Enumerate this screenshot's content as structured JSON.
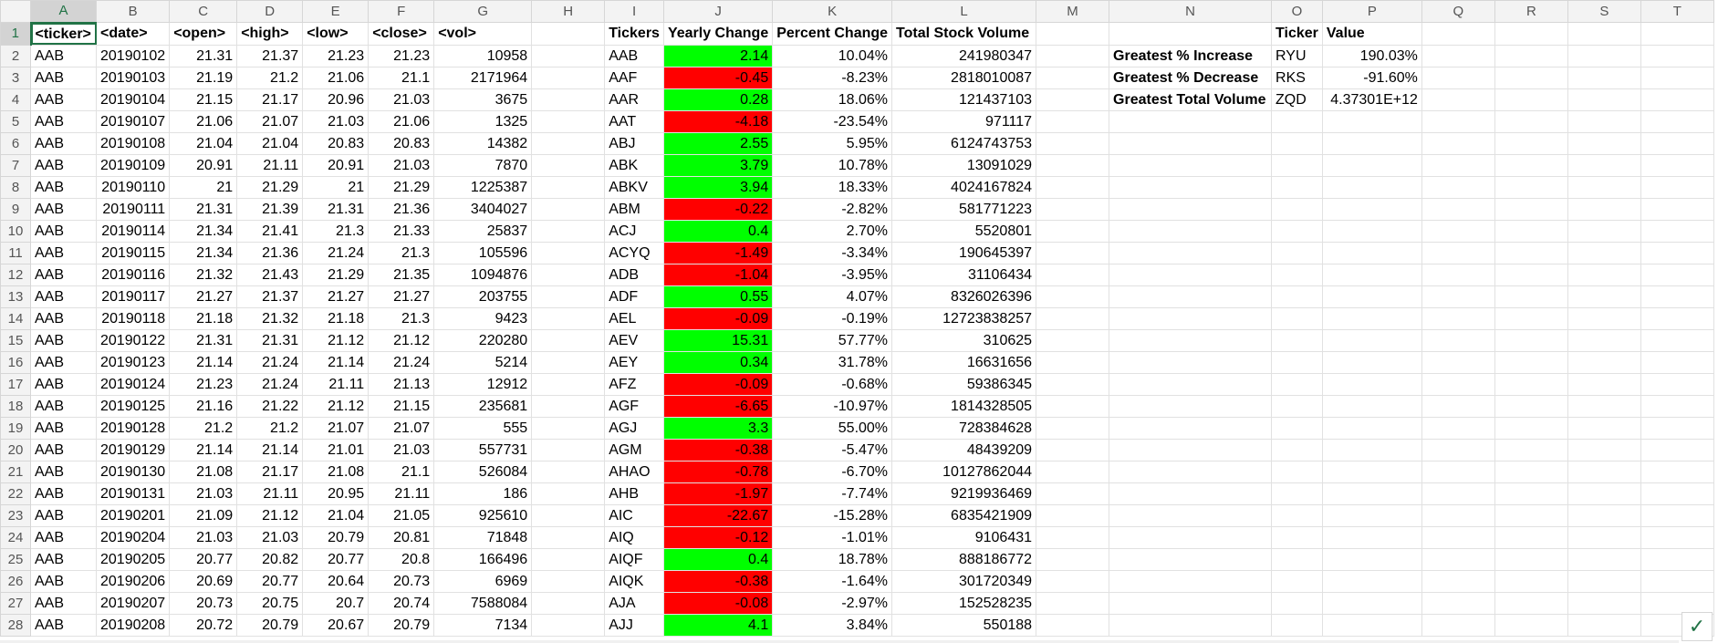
{
  "columns": [
    "A",
    "B",
    "C",
    "D",
    "E",
    "F",
    "G",
    "H",
    "I",
    "J",
    "K",
    "L",
    "M",
    "N",
    "O",
    "P",
    "Q",
    "R",
    "S",
    "T"
  ],
  "selected_cell": "A1",
  "colors": {
    "positive_fill": "#00ff00",
    "negative_fill": "#ff0000",
    "accent": "#217346"
  },
  "raw_headers": [
    "<ticker>",
    "<date>",
    "<open>",
    "<high>",
    "<low>",
    "<close>",
    "<vol>"
  ],
  "raw_rows": [
    [
      "AAB",
      "20190102",
      "21.31",
      "21.37",
      "21.23",
      "21.23",
      "10958"
    ],
    [
      "AAB",
      "20190103",
      "21.19",
      "21.2",
      "21.06",
      "21.1",
      "2171964"
    ],
    [
      "AAB",
      "20190104",
      "21.15",
      "21.17",
      "20.96",
      "21.03",
      "3675"
    ],
    [
      "AAB",
      "20190107",
      "21.06",
      "21.07",
      "21.03",
      "21.06",
      "1325"
    ],
    [
      "AAB",
      "20190108",
      "21.04",
      "21.04",
      "20.83",
      "20.83",
      "14382"
    ],
    [
      "AAB",
      "20190109",
      "20.91",
      "21.11",
      "20.91",
      "21.03",
      "7870"
    ],
    [
      "AAB",
      "20190110",
      "21",
      "21.29",
      "21",
      "21.29",
      "1225387"
    ],
    [
      "AAB",
      "20190111",
      "21.31",
      "21.39",
      "21.31",
      "21.36",
      "3404027"
    ],
    [
      "AAB",
      "20190114",
      "21.34",
      "21.41",
      "21.3",
      "21.33",
      "25837"
    ],
    [
      "AAB",
      "20190115",
      "21.34",
      "21.36",
      "21.24",
      "21.3",
      "105596"
    ],
    [
      "AAB",
      "20190116",
      "21.32",
      "21.43",
      "21.29",
      "21.35",
      "1094876"
    ],
    [
      "AAB",
      "20190117",
      "21.27",
      "21.37",
      "21.27",
      "21.27",
      "203755"
    ],
    [
      "AAB",
      "20190118",
      "21.18",
      "21.32",
      "21.18",
      "21.3",
      "9423"
    ],
    [
      "AAB",
      "20190122",
      "21.31",
      "21.31",
      "21.12",
      "21.12",
      "220280"
    ],
    [
      "AAB",
      "20190123",
      "21.14",
      "21.24",
      "21.14",
      "21.24",
      "5214"
    ],
    [
      "AAB",
      "20190124",
      "21.23",
      "21.24",
      "21.11",
      "21.13",
      "12912"
    ],
    [
      "AAB",
      "20190125",
      "21.16",
      "21.22",
      "21.12",
      "21.15",
      "235681"
    ],
    [
      "AAB",
      "20190128",
      "21.2",
      "21.2",
      "21.07",
      "21.07",
      "555"
    ],
    [
      "AAB",
      "20190129",
      "21.14",
      "21.14",
      "21.01",
      "21.03",
      "557731"
    ],
    [
      "AAB",
      "20190130",
      "21.08",
      "21.17",
      "21.08",
      "21.1",
      "526084"
    ],
    [
      "AAB",
      "20190131",
      "21.03",
      "21.11",
      "20.95",
      "21.11",
      "186"
    ],
    [
      "AAB",
      "20190201",
      "21.09",
      "21.12",
      "21.04",
      "21.05",
      "925610"
    ],
    [
      "AAB",
      "20190204",
      "21.03",
      "21.03",
      "20.79",
      "20.81",
      "71848"
    ],
    [
      "AAB",
      "20190205",
      "20.77",
      "20.82",
      "20.77",
      "20.8",
      "166496"
    ],
    [
      "AAB",
      "20190206",
      "20.69",
      "20.77",
      "20.64",
      "20.73",
      "6969"
    ],
    [
      "AAB",
      "20190207",
      "20.73",
      "20.75",
      "20.7",
      "20.74",
      "7588084"
    ],
    [
      "AAB",
      "20190208",
      "20.72",
      "20.79",
      "20.67",
      "20.79",
      "7134"
    ]
  ],
  "summary_headers": [
    "Tickers",
    "Yearly Change",
    "Percent Change",
    "Total Stock Volume"
  ],
  "summary_rows": [
    [
      "AAB",
      "2.14",
      "10.04%",
      "241980347"
    ],
    [
      "AAF",
      "-0.45",
      "-8.23%",
      "2818010087"
    ],
    [
      "AAR",
      "0.28",
      "18.06%",
      "121437103"
    ],
    [
      "AAT",
      "-4.18",
      "-23.54%",
      "971117"
    ],
    [
      "ABJ",
      "2.55",
      "5.95%",
      "6124743753"
    ],
    [
      "ABK",
      "3.79",
      "10.78%",
      "13091029"
    ],
    [
      "ABKV",
      "3.94",
      "18.33%",
      "4024167824"
    ],
    [
      "ABM",
      "-0.22",
      "-2.82%",
      "581771223"
    ],
    [
      "ACJ",
      "0.4",
      "2.70%",
      "5520801"
    ],
    [
      "ACYQ",
      "-1.49",
      "-3.34%",
      "190645397"
    ],
    [
      "ADB",
      "-1.04",
      "-3.95%",
      "31106434"
    ],
    [
      "ADF",
      "0.55",
      "4.07%",
      "8326026396"
    ],
    [
      "AEL",
      "-0.09",
      "-0.19%",
      "12723838257"
    ],
    [
      "AEV",
      "15.31",
      "57.77%",
      "310625"
    ],
    [
      "AEY",
      "0.34",
      "31.78%",
      "16631656"
    ],
    [
      "AFZ",
      "-0.09",
      "-0.68%",
      "59386345"
    ],
    [
      "AGF",
      "-6.65",
      "-10.97%",
      "1814328505"
    ],
    [
      "AGJ",
      "3.3",
      "55.00%",
      "728384628"
    ],
    [
      "AGM",
      "-0.38",
      "-5.47%",
      "48439209"
    ],
    [
      "AHAO",
      "-0.78",
      "-6.70%",
      "10127862044"
    ],
    [
      "AHB",
      "-1.97",
      "-7.74%",
      "9219936469"
    ],
    [
      "AIC",
      "-22.67",
      "-15.28%",
      "6835421909"
    ],
    [
      "AIQ",
      "-0.12",
      "-1.01%",
      "9106431"
    ],
    [
      "AIQF",
      "0.4",
      "18.78%",
      "888186772"
    ],
    [
      "AIQK",
      "-0.38",
      "-1.64%",
      "301720349"
    ],
    [
      "AJA",
      "-0.08",
      "-2.97%",
      "152528235"
    ],
    [
      "AJJ",
      "4.1",
      "3.84%",
      "550188"
    ]
  ],
  "greatest_headers": [
    "Ticker",
    "Value"
  ],
  "greatest_rows": [
    [
      "Greatest % Increase",
      "RYU",
      "190.03%"
    ],
    [
      "Greatest % Decrease",
      "RKS",
      "-91.60%"
    ],
    [
      "Greatest Total Volume",
      "ZQD",
      "4.37301E+12"
    ]
  ]
}
